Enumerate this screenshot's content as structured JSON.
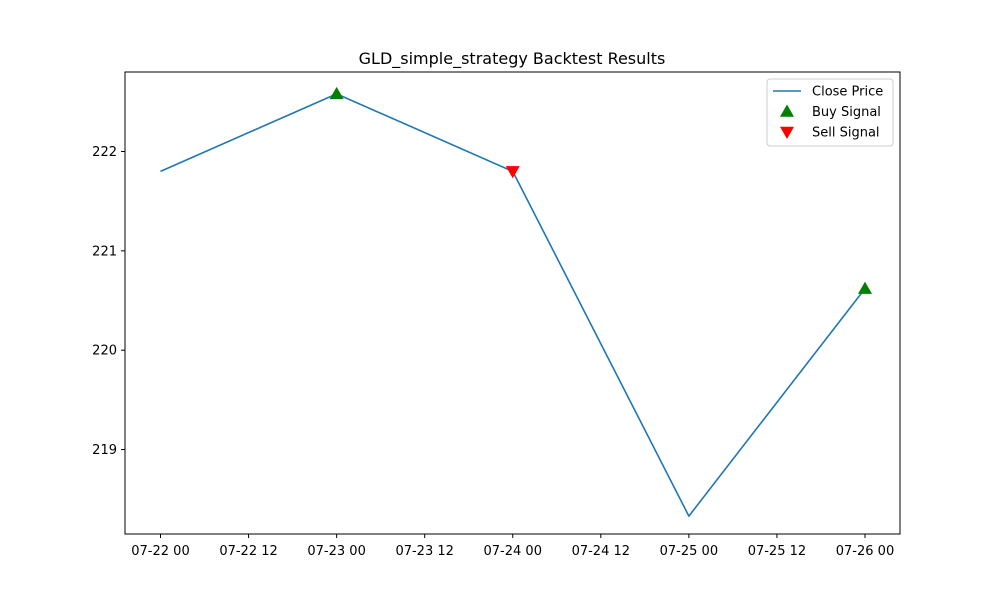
{
  "chart_data": {
    "type": "line",
    "title": "GLD_simple_strategy Backtest Results",
    "xlabel": "",
    "ylabel": "",
    "x": [
      "07-22 00",
      "07-23 00",
      "07-24 00",
      "07-25 00",
      "07-26 00"
    ],
    "x_ticks": [
      "07-22 00",
      "07-22 12",
      "07-23 00",
      "07-23 12",
      "07-24 00",
      "07-24 12",
      "07-25 00",
      "07-25 12",
      "07-26 00"
    ],
    "y_ticks": [
      219,
      220,
      221,
      222
    ],
    "ylim": [
      218.15,
      222.8
    ],
    "grid": false,
    "legend_position": "top-right",
    "series": [
      {
        "name": "Close Price",
        "kind": "line",
        "color": "#1f77b4",
        "values": [
          221.8,
          222.58,
          221.8,
          218.33,
          220.62
        ]
      },
      {
        "name": "Buy Signal",
        "kind": "marker-up",
        "color": "#008000",
        "points": [
          {
            "x": "07-23 00",
            "y": 222.58
          },
          {
            "x": "07-26 00",
            "y": 220.62
          }
        ]
      },
      {
        "name": "Sell Signal",
        "kind": "marker-down",
        "color": "#ff0000",
        "points": [
          {
            "x": "07-24 00",
            "y": 221.8
          }
        ]
      }
    ]
  }
}
